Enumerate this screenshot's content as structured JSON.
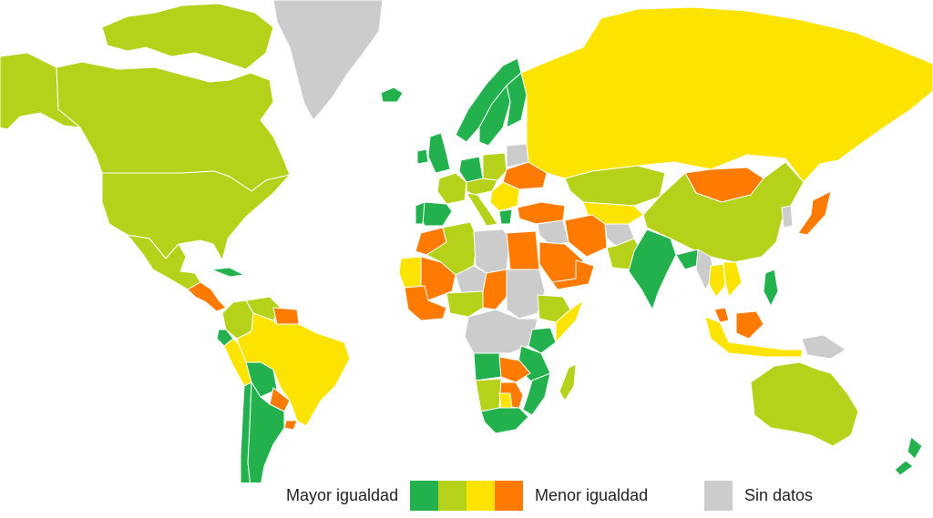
{
  "legend": {
    "low_label": "Mayor igualdad",
    "high_label": "Menor igualdad",
    "nodata_label": "Sin datos",
    "scale": [
      {
        "name": "level-1",
        "color": "#22b14c"
      },
      {
        "name": "level-2",
        "color": "#b5d11a"
      },
      {
        "name": "level-3",
        "color": "#fde400"
      },
      {
        "name": "level-4",
        "color": "#ff7a00"
      }
    ],
    "nodata_color": "#cccccc"
  },
  "regions": [
    {
      "name": "alaska",
      "level": 2
    },
    {
      "name": "canada",
      "level": 2
    },
    {
      "name": "canada-arctic-islands",
      "level": 2
    },
    {
      "name": "greenland",
      "level": 0
    },
    {
      "name": "iceland",
      "level": 1
    },
    {
      "name": "united-states",
      "level": 2
    },
    {
      "name": "mexico",
      "level": 2
    },
    {
      "name": "central-america",
      "level": 4
    },
    {
      "name": "cuba",
      "level": 1
    },
    {
      "name": "colombia",
      "level": 2
    },
    {
      "name": "venezuela",
      "level": 2
    },
    {
      "name": "guianas",
      "level": 4
    },
    {
      "name": "ecuador",
      "level": 1
    },
    {
      "name": "peru",
      "level": 3
    },
    {
      "name": "brazil",
      "level": 3
    },
    {
      "name": "bolivia",
      "level": 1
    },
    {
      "name": "paraguay",
      "level": 4
    },
    {
      "name": "uruguay",
      "level": 4
    },
    {
      "name": "chile",
      "level": 1
    },
    {
      "name": "argentina",
      "level": 1
    },
    {
      "name": "norway",
      "level": 1
    },
    {
      "name": "sweden",
      "level": 1
    },
    {
      "name": "finland",
      "level": 1
    },
    {
      "name": "united-kingdom",
      "level": 1
    },
    {
      "name": "ireland",
      "level": 1
    },
    {
      "name": "spain",
      "level": 1
    },
    {
      "name": "portugal",
      "level": 1
    },
    {
      "name": "france",
      "level": 2
    },
    {
      "name": "germany",
      "level": 1
    },
    {
      "name": "central-europe",
      "level": 2
    },
    {
      "name": "italy",
      "level": 2
    },
    {
      "name": "poland",
      "level": 2
    },
    {
      "name": "belarus",
      "level": 0
    },
    {
      "name": "ukraine",
      "level": 4
    },
    {
      "name": "balkans",
      "level": 3
    },
    {
      "name": "greece",
      "level": 1
    },
    {
      "name": "turkey",
      "level": 4
    },
    {
      "name": "russia",
      "level": 3
    },
    {
      "name": "kazakhstan",
      "level": 2
    },
    {
      "name": "central-asia",
      "level": 3
    },
    {
      "name": "mongolia",
      "level": 4
    },
    {
      "name": "china",
      "level": 2
    },
    {
      "name": "korea",
      "level": 0
    },
    {
      "name": "japan",
      "level": 4
    },
    {
      "name": "iran",
      "level": 4
    },
    {
      "name": "iraq-syria",
      "level": 0
    },
    {
      "name": "saudi-arabia",
      "level": 4
    },
    {
      "name": "yemen-oman",
      "level": 4
    },
    {
      "name": "afghanistan",
      "level": 0
    },
    {
      "name": "pakistan",
      "level": 2
    },
    {
      "name": "india",
      "level": 1
    },
    {
      "name": "bangladesh",
      "level": 1
    },
    {
      "name": "myanmar",
      "level": 0
    },
    {
      "name": "thailand",
      "level": 3
    },
    {
      "name": "indochina",
      "level": 3
    },
    {
      "name": "philippines",
      "level": 1
    },
    {
      "name": "malaysia",
      "level": 4
    },
    {
      "name": "indonesia",
      "level": 3
    },
    {
      "name": "borneo",
      "level": 4
    },
    {
      "name": "papua",
      "level": 0
    },
    {
      "name": "australia",
      "level": 2
    },
    {
      "name": "new-zealand",
      "level": 1
    },
    {
      "name": "morocco",
      "level": 4
    },
    {
      "name": "algeria",
      "level": 2
    },
    {
      "name": "libya",
      "level": 0
    },
    {
      "name": "egypt",
      "level": 4
    },
    {
      "name": "mali",
      "level": 4
    },
    {
      "name": "mauritania",
      "level": 3
    },
    {
      "name": "niger",
      "level": 0
    },
    {
      "name": "chad",
      "level": 4
    },
    {
      "name": "sudan",
      "level": 0
    },
    {
      "name": "west-africa",
      "level": 4
    },
    {
      "name": "nigeria",
      "level": 2
    },
    {
      "name": "ethiopia",
      "level": 2
    },
    {
      "name": "somalia",
      "level": 3
    },
    {
      "name": "central-africa",
      "level": 0
    },
    {
      "name": "kenya",
      "level": 1
    },
    {
      "name": "tanzania",
      "level": 1
    },
    {
      "name": "angola",
      "level": 1
    },
    {
      "name": "zambia",
      "level": 4
    },
    {
      "name": "mozambique",
      "level": 1
    },
    {
      "name": "zimbabwe",
      "level": 4
    },
    {
      "name": "namibia",
      "level": 2
    },
    {
      "name": "botswana",
      "level": 3
    },
    {
      "name": "south-africa",
      "level": 1
    },
    {
      "name": "madagascar",
      "level": 2
    }
  ]
}
